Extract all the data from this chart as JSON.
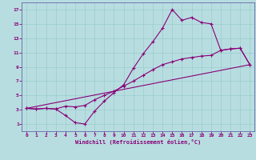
{
  "xlabel": "Windchill (Refroidissement éolien,°C)",
  "bg_color": "#b8dde0",
  "line_color": "#880077",
  "grid_color": "#99cccc",
  "spine_color": "#6666aa",
  "xlim": [
    -0.5,
    23.5
  ],
  "ylim": [
    0,
    18
  ],
  "xticks": [
    0,
    1,
    2,
    3,
    4,
    5,
    6,
    7,
    8,
    9,
    10,
    11,
    12,
    13,
    14,
    15,
    16,
    17,
    18,
    19,
    20,
    21,
    22,
    23
  ],
  "yticks": [
    1,
    3,
    5,
    7,
    9,
    11,
    13,
    15,
    17
  ],
  "series1_x": [
    0,
    1,
    2,
    3,
    4,
    5,
    6,
    7,
    8,
    9,
    10,
    11,
    12,
    13,
    14,
    15,
    16,
    17,
    18,
    19,
    20,
    21,
    22,
    23
  ],
  "series1_y": [
    3.2,
    3.1,
    3.2,
    3.1,
    2.2,
    1.2,
    1.0,
    2.8,
    4.2,
    5.4,
    6.5,
    8.8,
    10.8,
    12.5,
    14.4,
    17.0,
    15.5,
    15.9,
    15.2,
    15.0,
    11.3,
    11.5,
    11.6,
    9.3
  ],
  "series2_x": [
    0,
    1,
    2,
    3,
    4,
    5,
    6,
    7,
    8,
    9,
    10,
    11,
    12,
    13,
    14,
    15,
    16,
    17,
    18,
    19,
    20,
    21,
    22,
    23
  ],
  "series2_y": [
    3.2,
    3.1,
    3.2,
    3.1,
    3.5,
    3.4,
    3.6,
    4.4,
    5.0,
    5.6,
    6.3,
    7.0,
    7.8,
    8.6,
    9.3,
    9.7,
    10.1,
    10.3,
    10.5,
    10.6,
    11.3,
    11.5,
    11.6,
    9.3
  ],
  "series3_x": [
    0,
    23
  ],
  "series3_y": [
    3.2,
    9.3
  ]
}
